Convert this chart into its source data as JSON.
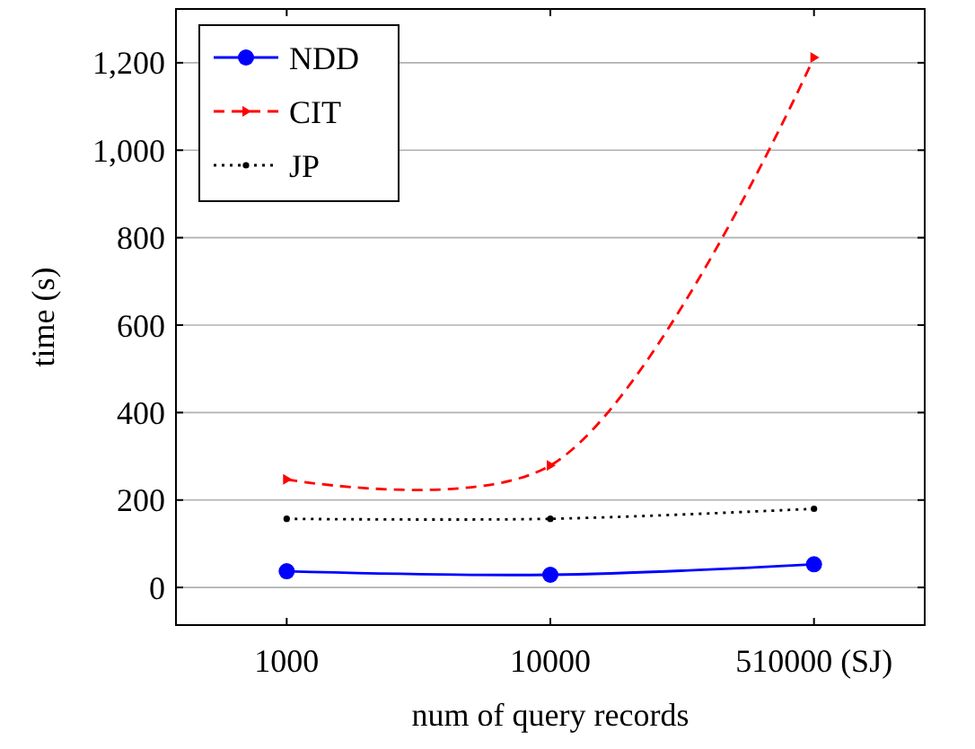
{
  "chart_data": {
    "type": "line",
    "xlabel": "num of query records",
    "ylabel": "time (s)",
    "categories": [
      "1000",
      "10000",
      "510000 (SJ)"
    ],
    "series": [
      {
        "name": "NDD",
        "color": "#0000ff",
        "values": [
          37,
          29,
          53
        ],
        "marker": "circle",
        "line_style": "solid"
      },
      {
        "name": "CIT",
        "color": "#ff0000",
        "values": [
          247,
          279,
          1212
        ],
        "marker": "triangle",
        "line_style": "dashed"
      },
      {
        "name": "JP",
        "color": "#000000",
        "values": [
          157,
          157,
          180
        ],
        "marker": "circle",
        "line_style": "dotted"
      }
    ],
    "ylim": [
      -86,
      1323
    ],
    "yticks": [
      0,
      200,
      400,
      600,
      800,
      {
        "value": 1000,
        "label": "1,000"
      },
      {
        "value": 1200,
        "label": "1,200"
      }
    ],
    "grid": "y",
    "legend": "top left"
  }
}
